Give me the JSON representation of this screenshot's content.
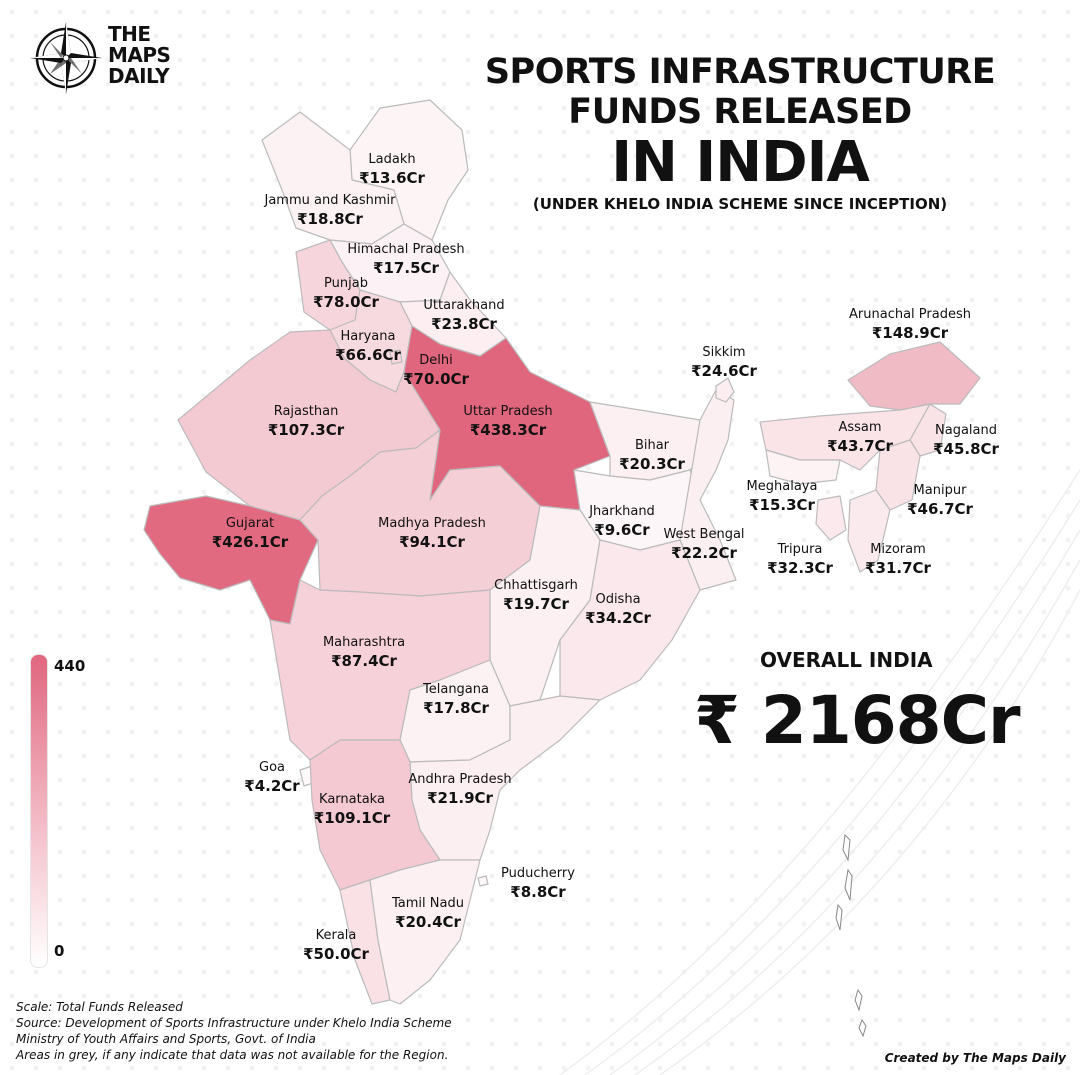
{
  "brand": {
    "line1": "THE",
    "line2": "MAPS",
    "line3": "DAILY"
  },
  "title": {
    "line1": "SPORTS INFRASTRUCTURE",
    "line2": "FUNDS RELEASED",
    "line3": "IN INDIA",
    "subtitle": "(UNDER KHELO INDIA SCHEME SINCE INCEPTION)"
  },
  "colors": {
    "max": "#e0667e",
    "min": "#ffffff",
    "stroke": "#bbbbbb",
    "background": "#ffffff"
  },
  "chart_data": {
    "type": "choropleth",
    "unit": "Cr",
    "scale_min": 0,
    "scale_max": 440,
    "regions": [
      {
        "name": "Ladakh",
        "label": "Ladakh",
        "value_text": "₹13.6Cr",
        "value": 13.6
      },
      {
        "name": "Jammu and Kashmir",
        "label": "Jammu and Kashmir",
        "value_text": "₹18.8Cr",
        "value": 18.8
      },
      {
        "name": "Himachal Pradesh",
        "label": "Himachal Pradesh",
        "value_text": "₹17.5Cr",
        "value": 17.5
      },
      {
        "name": "Punjab",
        "label": "Punjab",
        "value_text": "₹78.0Cr",
        "value": 78.0
      },
      {
        "name": "Uttarakhand",
        "label": "Uttarakhand",
        "value_text": "₹23.8Cr",
        "value": 23.8
      },
      {
        "name": "Haryana",
        "label": "Haryana",
        "value_text": "₹66.6Cr",
        "value": 66.6
      },
      {
        "name": "Delhi",
        "label": "Delhi",
        "value_text": "₹70.0Cr",
        "value": 70.0
      },
      {
        "name": "Rajasthan",
        "label": "Rajasthan",
        "value_text": "₹107.3Cr",
        "value": 107.3
      },
      {
        "name": "Uttar Pradesh",
        "label": "Uttar Pradesh",
        "value_text": "₹438.3Cr",
        "value": 438.3
      },
      {
        "name": "Sikkim",
        "label": "Sikkim",
        "value_text": "₹24.6Cr",
        "value": 24.6
      },
      {
        "name": "Arunachal Pradesh",
        "label": "Arunachal Pradesh",
        "value_text": "₹148.9Cr",
        "value": 148.9
      },
      {
        "name": "Assam",
        "label": "Assam",
        "value_text": "₹43.7Cr",
        "value": 43.7
      },
      {
        "name": "Nagaland",
        "label": "Nagaland",
        "value_text": "₹45.8Cr",
        "value": 45.8
      },
      {
        "name": "Bihar",
        "label": "Bihar",
        "value_text": "₹20.3Cr",
        "value": 20.3
      },
      {
        "name": "Meghalaya",
        "label": "Meghalaya",
        "value_text": "₹15.3Cr",
        "value": 15.3
      },
      {
        "name": "Manipur",
        "label": "Manipur",
        "value_text": "₹46.7Cr",
        "value": 46.7
      },
      {
        "name": "Gujarat",
        "label": "Gujarat",
        "value_text": "₹426.1Cr",
        "value": 426.1
      },
      {
        "name": "Madhya Pradesh",
        "label": "Madhya Pradesh",
        "value_text": "₹94.1Cr",
        "value": 94.1
      },
      {
        "name": "Jharkhand",
        "label": "Jharkhand",
        "value_text": "₹9.6Cr",
        "value": 9.6
      },
      {
        "name": "West Bengal",
        "label": "West Bengal",
        "value_text": "₹22.2Cr",
        "value": 22.2
      },
      {
        "name": "Tripura",
        "label": "Tripura",
        "value_text": "₹32.3Cr",
        "value": 32.3
      },
      {
        "name": "Mizoram",
        "label": "Mizoram",
        "value_text": "₹31.7Cr",
        "value": 31.7
      },
      {
        "name": "Chhattisgarh",
        "label": "Chhattisgarh",
        "value_text": "₹19.7Cr",
        "value": 19.7
      },
      {
        "name": "Odisha",
        "label": "Odisha",
        "value_text": "₹34.2Cr",
        "value": 34.2
      },
      {
        "name": "Maharashtra",
        "label": "Maharashtra",
        "value_text": "₹87.4Cr",
        "value": 87.4
      },
      {
        "name": "Telangana",
        "label": "Telangana",
        "value_text": "₹17.8Cr",
        "value": 17.8
      },
      {
        "name": "Goa",
        "label": "Goa",
        "value_text": "₹4.2Cr",
        "value": 4.2
      },
      {
        "name": "Andhra Pradesh",
        "label": "Andhra Pradesh",
        "value_text": "₹21.9Cr",
        "value": 21.9
      },
      {
        "name": "Karnataka",
        "label": "Karnataka",
        "value_text": "₹109.1Cr",
        "value": 109.1
      },
      {
        "name": "Puducherry",
        "label": "Puducherry",
        "value_text": "₹8.8Cr",
        "value": 8.8
      },
      {
        "name": "Tamil Nadu",
        "label": "Tamil Nadu",
        "value_text": "₹20.4Cr",
        "value": 20.4
      },
      {
        "name": "Kerala",
        "label": "Kerala",
        "value_text": "₹50.0Cr",
        "value": 50.0
      }
    ]
  },
  "overall": {
    "label": "OVERALL INDIA",
    "value": "₹ 2168Cr"
  },
  "legend": {
    "max": "440",
    "min": "0"
  },
  "footer": {
    "scale": "Scale: Total Funds Released",
    "source": "Source: Development of Sports Infrastructure under Khelo India Scheme",
    "ministry": "Ministry of Youth Affairs and Sports, Govt. of India",
    "note": "Areas in grey, if any indicate that data was not available for the Region."
  },
  "credit": "Created by The Maps Daily"
}
